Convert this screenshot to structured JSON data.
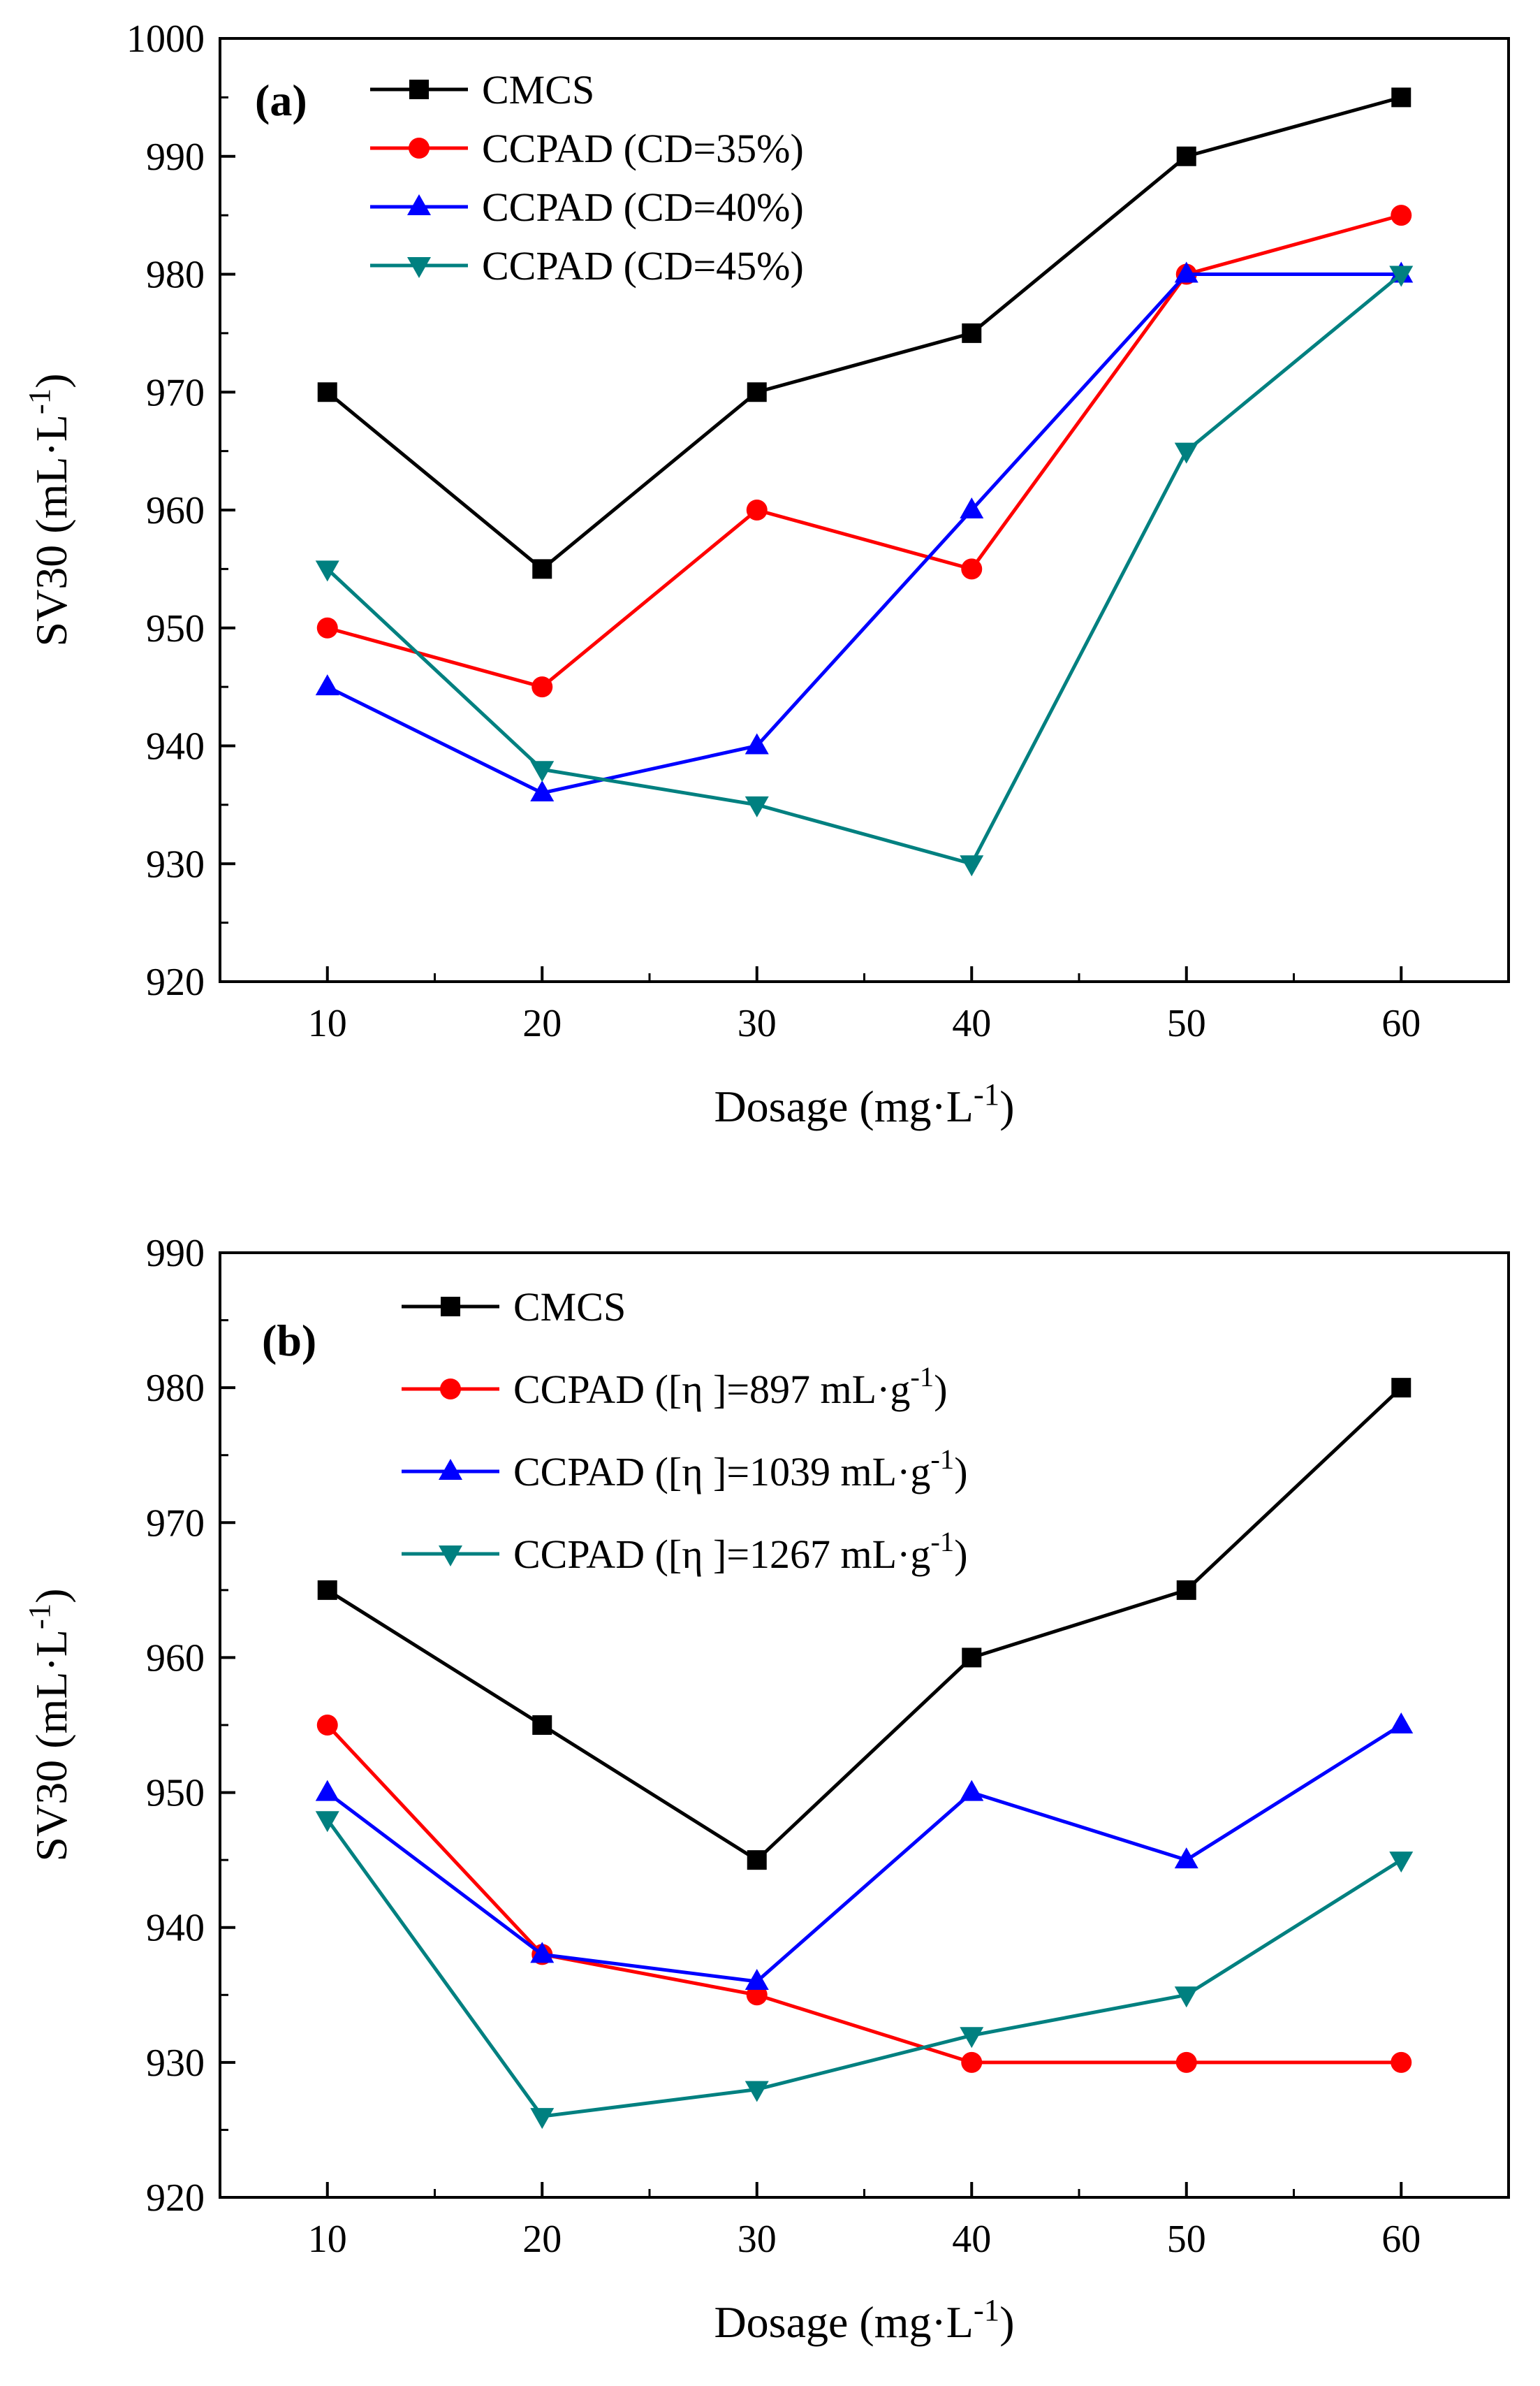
{
  "chart_data": [
    {
      "type": "line",
      "panel_label": "(a)",
      "x": [
        10,
        20,
        30,
        40,
        50,
        60
      ],
      "xlabel": "Dosage (mg·L",
      "xlabel_sup": "-1",
      "xlabel_close": ")",
      "ylabel": "SV30 (mL·L",
      "ylabel_sup": "-1",
      "ylabel_close": ")",
      "xlim": [
        5,
        65
      ],
      "ylim": [
        920,
        1000
      ],
      "xticks": [
        10,
        20,
        30,
        40,
        50,
        60
      ],
      "yticks": [
        920,
        930,
        940,
        950,
        960,
        970,
        980,
        990,
        1000
      ],
      "legend_position": "top-left",
      "series": [
        {
          "name": "CMCS",
          "label_main": "CMCS",
          "label_sup": "",
          "label_tail": "",
          "color": "#000000",
          "marker": "square",
          "values": [
            970,
            955,
            970,
            975,
            990,
            995
          ]
        },
        {
          "name": "CCPAD (CD=35%)",
          "label_main": "CCPAD (CD=35%)",
          "label_sup": "",
          "label_tail": "",
          "color": "#ff0000",
          "marker": "circle",
          "values": [
            950,
            945,
            960,
            955,
            980,
            985
          ]
        },
        {
          "name": "CCPAD (CD=40%)",
          "label_main": "CCPAD (CD=40%)",
          "label_sup": "",
          "label_tail": "",
          "color": "#0000ff",
          "marker": "triangle-up",
          "values": [
            945,
            936,
            940,
            960,
            980,
            980
          ]
        },
        {
          "name": "CCPAD (CD=45%)",
          "label_main": "CCPAD (CD=45%)",
          "label_sup": "",
          "label_tail": "",
          "color": "#008080",
          "marker": "triangle-down",
          "values": [
            955,
            938,
            935,
            930,
            965,
            980
          ]
        }
      ]
    },
    {
      "type": "line",
      "panel_label": "(b)",
      "x": [
        10,
        20,
        30,
        40,
        50,
        60
      ],
      "xlabel": "Dosage (mg·L",
      "xlabel_sup": "-1",
      "xlabel_close": ")",
      "ylabel": "SV30 (mL·L",
      "ylabel_sup": "-1",
      "ylabel_close": ")",
      "xlim": [
        5,
        65
      ],
      "ylim": [
        920,
        990
      ],
      "xticks": [
        10,
        20,
        30,
        40,
        50,
        60
      ],
      "yticks": [
        920,
        930,
        940,
        950,
        960,
        970,
        980,
        990
      ],
      "legend_position": "top-left",
      "series": [
        {
          "name": "CMCS",
          "label_main": "CMCS",
          "label_sup": "",
          "label_tail": "",
          "color": "#000000",
          "marker": "square",
          "values": [
            965,
            955,
            945,
            960,
            965,
            980
          ]
        },
        {
          "name": "CCPAD ([η ]=897 mL·g-1)",
          "label_main": "CCPAD ([η ]=897 mL·g",
          "label_sup": "-1",
          "label_tail": ")",
          "color": "#ff0000",
          "marker": "circle",
          "values": [
            955,
            938,
            935,
            930,
            930,
            930
          ]
        },
        {
          "name": "CCPAD ([η ]=1039 mL·g-1)",
          "label_main": "CCPAD ([η ]=1039 mL·g",
          "label_sup": "-1",
          "label_tail": ")",
          "color": "#0000ff",
          "marker": "triangle-up",
          "values": [
            950,
            938,
            936,
            950,
            945,
            955
          ]
        },
        {
          "name": "CCPAD ([η ]=1267 mL·g-1)",
          "label_main": "CCPAD ([η ]=1267 mL·g",
          "label_sup": "-1",
          "label_tail": ")",
          "color": "#008080",
          "marker": "triangle-down",
          "values": [
            948,
            926,
            928,
            932,
            935,
            945
          ]
        }
      ]
    }
  ]
}
